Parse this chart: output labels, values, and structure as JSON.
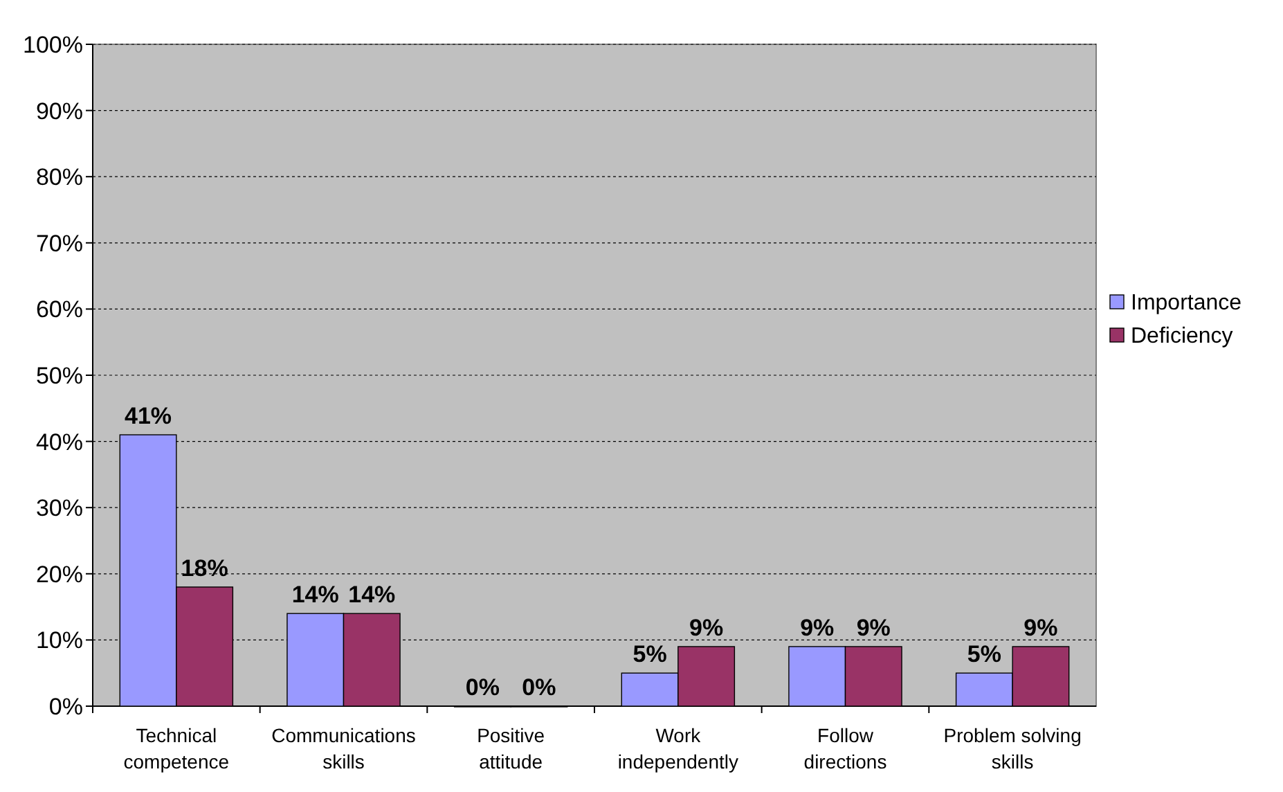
{
  "chart_data": {
    "type": "bar",
    "categories": [
      "Technical competence",
      "Communications skills",
      "Positive attitude",
      "Work independently",
      "Follow directions",
      "Problem solving skills"
    ],
    "series": [
      {
        "name": "Importance",
        "color": "#9999ff",
        "values": [
          41,
          14,
          0,
          5,
          9,
          5
        ],
        "value_labels": [
          "41%",
          "14%",
          "0%",
          "5%",
          "9%",
          "5%"
        ]
      },
      {
        "name": "Deficiency",
        "color": "#993366",
        "values": [
          18,
          14,
          0,
          9,
          9,
          9
        ],
        "value_labels": [
          "18%",
          "14%",
          "0%",
          "9%",
          "9%",
          "9%"
        ]
      }
    ],
    "ylim": [
      0,
      100
    ],
    "yticks": [
      {
        "value": 0,
        "label": "0%"
      },
      {
        "value": 10,
        "label": "10%"
      },
      {
        "value": 20,
        "label": "20%"
      },
      {
        "value": 30,
        "label": "30%"
      },
      {
        "value": 40,
        "label": "40%"
      },
      {
        "value": 50,
        "label": "50%"
      },
      {
        "value": 60,
        "label": "60%"
      },
      {
        "value": 70,
        "label": "70%"
      },
      {
        "value": 80,
        "label": "80%"
      },
      {
        "value": 90,
        "label": "90%"
      },
      {
        "value": 100,
        "label": "100%"
      }
    ],
    "grid": "y",
    "legend": "right"
  }
}
